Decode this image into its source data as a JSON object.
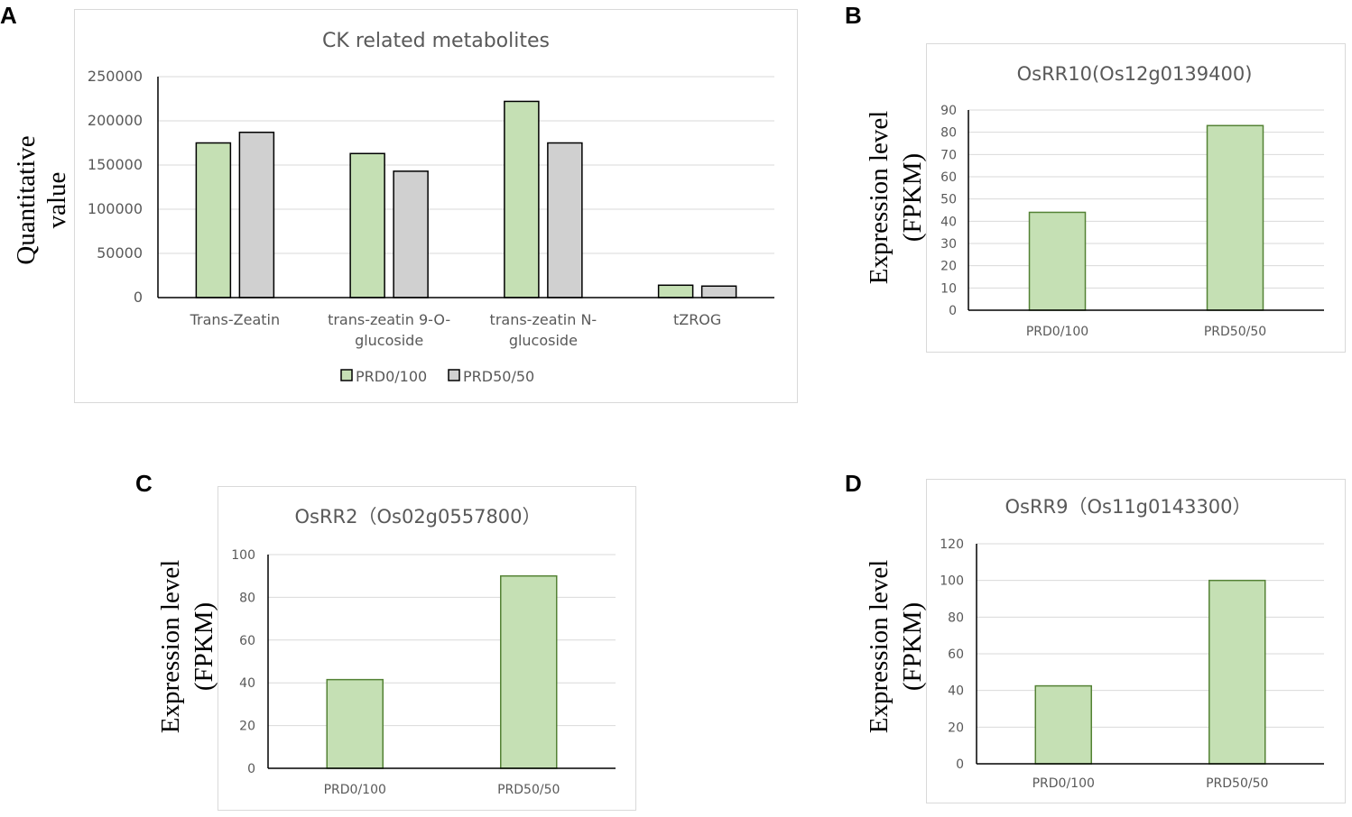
{
  "panels": {
    "a": "A",
    "b": "B",
    "c": "C",
    "d": "D"
  },
  "colors": {
    "green_fill": "#c5e0b4",
    "green_stroke": "#548235",
    "gray_fill": "#d0d0d0",
    "gray_stroke": "#000000",
    "grid": "#d9d9d9",
    "axis": "#000000"
  },
  "chart_data": [
    {
      "id": "A",
      "type": "bar",
      "title": "CK related metabolites",
      "ylabel": [
        "Quantitative",
        "value"
      ],
      "xlabel": "",
      "categories": [
        [
          "Trans-Zeatin"
        ],
        [
          "trans-zeatin 9-O-",
          "glucoside"
        ],
        [
          "trans-zeatin N-",
          "glucoside"
        ],
        [
          "tZROG"
        ]
      ],
      "series": [
        {
          "name": "PRD0/100",
          "values": [
            175000,
            163000,
            222000,
            14000
          ]
        },
        {
          "name": "PRD50/50",
          "values": [
            187000,
            143000,
            175000,
            13000
          ]
        }
      ],
      "ylim": [
        0,
        250000
      ],
      "yticks": [
        0,
        50000,
        100000,
        150000,
        200000,
        250000
      ],
      "legend": "bottom"
    },
    {
      "id": "B",
      "type": "bar",
      "title": "OsRR10(Os12g0139400)",
      "ylabel": [
        "Expression level",
        "(FPKM)"
      ],
      "categories": [
        "PRD0/100",
        "PRD50/50"
      ],
      "values": [
        44,
        83
      ],
      "ylim": [
        0,
        90
      ],
      "yticks": [
        0,
        10,
        20,
        30,
        40,
        50,
        60,
        70,
        80,
        90
      ]
    },
    {
      "id": "C",
      "type": "bar",
      "title": "OsRR2（Os02g0557800）",
      "ylabel": [
        "Expression level",
        "(FPKM)"
      ],
      "categories": [
        "PRD0/100",
        "PRD50/50"
      ],
      "values": [
        41.5,
        90
      ],
      "ylim": [
        0,
        100
      ],
      "yticks": [
        0,
        20,
        40,
        60,
        80,
        100
      ]
    },
    {
      "id": "D",
      "type": "bar",
      "title": "OsRR9（Os11g0143300）",
      "ylabel": [
        "Expression level",
        "(FPKM)"
      ],
      "categories": [
        "PRD0/100",
        "PRD50/50"
      ],
      "values": [
        42.5,
        100
      ],
      "ylim": [
        0,
        120
      ],
      "yticks": [
        0,
        20,
        40,
        60,
        80,
        100,
        120
      ]
    }
  ]
}
